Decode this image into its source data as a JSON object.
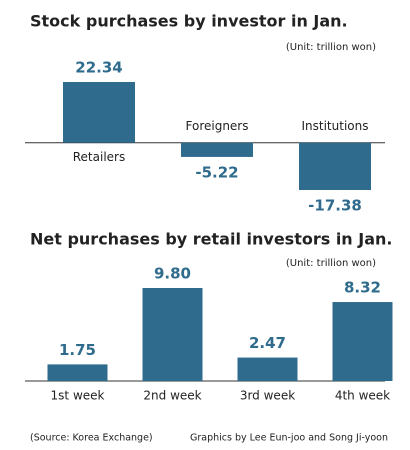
{
  "chart_data": [
    {
      "type": "bar",
      "title": "Stock purchases by investor in Jan.",
      "subtitle": "(Unit: trillion won)",
      "categories": [
        "Retailers",
        "Foreigners",
        "Institutions"
      ],
      "values": [
        22.34,
        -5.22,
        -17.38
      ],
      "color": "#2f6b8c"
    },
    {
      "type": "bar",
      "title": "Net purchases by retail investors in Jan.",
      "subtitle": "(Unit: trillion won)",
      "categories": [
        "1st week",
        "2nd week",
        "3rd week",
        "4th week"
      ],
      "values": [
        1.75,
        9.8,
        2.47,
        8.32
      ],
      "value_labels": [
        "1.75",
        "9.80",
        "2.47",
        "8.32"
      ],
      "color": "#2f6b8c"
    }
  ],
  "source": "(Source: Korea Exchange)",
  "credit": "Graphics by Lee Eun-joo and Song Ji-yoon"
}
